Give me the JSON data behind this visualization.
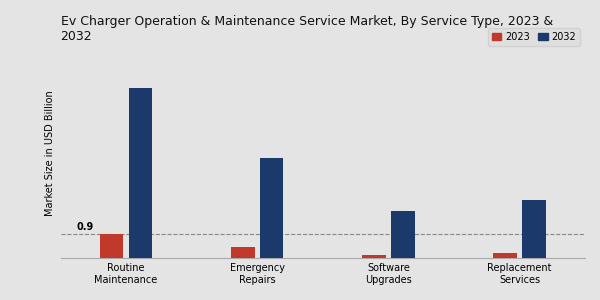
{
  "title": "Ev Charger Operation & Maintenance Service Market, By Service Type, 2023 &\n2032",
  "ylabel": "Market Size in USD Billion",
  "categories": [
    "Routine\nMaintenance",
    "Emergency\nRepairs",
    "Software\nUpgrades",
    "Replacement\nServices"
  ],
  "values_2023": [
    0.9,
    0.4,
    0.1,
    0.2
  ],
  "values_2032": [
    6.5,
    3.8,
    1.8,
    2.2
  ],
  "color_2023": "#c0392b",
  "color_2032": "#1b3a6b",
  "annotation_value": "0.9",
  "annotation_category_index": 0,
  "background_color": "#e4e4e4",
  "bar_width": 0.18,
  "bar_gap": 0.04,
  "title_fontsize": 9,
  "axis_fontsize": 7,
  "tick_fontsize": 7,
  "legend_labels": [
    "2023",
    "2032"
  ],
  "dashed_y": 0.9,
  "ylim": [
    0,
    8
  ],
  "xlim_left": -0.5,
  "xlim_right": 3.5
}
